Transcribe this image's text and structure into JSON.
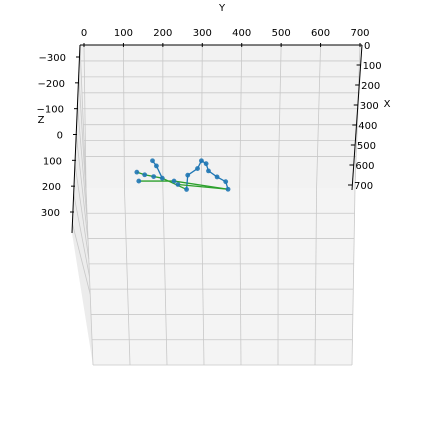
{
  "chart_data": {
    "type": "scatter",
    "projection": "3d",
    "grid": true,
    "axes": {
      "y": {
        "label": "Y",
        "ticks": [
          "0",
          "100",
          "200",
          "300",
          "400",
          "500",
          "600",
          "700"
        ],
        "range": [
          0,
          700
        ]
      },
      "x": {
        "label": "X",
        "ticks": [
          "0",
          "100",
          "200",
          "300",
          "400",
          "500",
          "600",
          "700"
        ],
        "range": [
          0,
          700
        ]
      },
      "z": {
        "label": "Z",
        "ticks": [
          "−300",
          "−200",
          "−100",
          "0",
          "100",
          "200",
          "300"
        ],
        "range": [
          -300,
          300
        ]
      }
    },
    "points": [
      {
        "y": 135,
        "x": 570,
        "z": 320
      },
      {
        "y": 155,
        "x": 580,
        "z": 322
      },
      {
        "y": 178,
        "x": 585,
        "z": 325
      },
      {
        "y": 200,
        "x": 590,
        "z": 327
      },
      {
        "y": 175,
        "x": 540,
        "z": 300
      },
      {
        "y": 185,
        "x": 555,
        "z": 308
      },
      {
        "y": 300,
        "x": 540,
        "z": 300
      },
      {
        "y": 312,
        "x": 548,
        "z": 305
      },
      {
        "y": 290,
        "x": 565,
        "z": 310
      },
      {
        "y": 265,
        "x": 590,
        "z": 315
      },
      {
        "y": 318,
        "x": 570,
        "z": 315
      },
      {
        "y": 340,
        "x": 590,
        "z": 322
      },
      {
        "y": 362,
        "x": 605,
        "z": 328
      },
      {
        "y": 368,
        "x": 630,
        "z": 337
      },
      {
        "y": 240,
        "x": 610,
        "z": 335
      },
      {
        "y": 262,
        "x": 625,
        "z": 342
      },
      {
        "y": 140,
        "x": 600,
        "z": 330
      },
      {
        "y": 230,
        "x": 600,
        "z": 330
      }
    ],
    "segments": [
      {
        "from": 0,
        "to": 1,
        "color": "#2ca02c"
      },
      {
        "from": 1,
        "to": 3,
        "color": "#2ca02c"
      },
      {
        "from": 4,
        "to": 5,
        "color": "#1f77b4"
      },
      {
        "from": 5,
        "to": 3,
        "color": "#1f77b4"
      },
      {
        "from": 16,
        "to": 17,
        "color": "#2ca02c"
      },
      {
        "from": 17,
        "to": 13,
        "color": "#2ca02c"
      },
      {
        "from": 3,
        "to": 15,
        "color": "#2ca02c"
      },
      {
        "from": 15,
        "to": 9,
        "color": "#1f77b4"
      },
      {
        "from": 9,
        "to": 8,
        "color": "#1f77b4"
      },
      {
        "from": 8,
        "to": 6,
        "color": "#1f77b4"
      },
      {
        "from": 6,
        "to": 7,
        "color": "#1f77b4"
      },
      {
        "from": 7,
        "to": 10,
        "color": "#1f77b4"
      },
      {
        "from": 10,
        "to": 11,
        "color": "#1f77b4"
      },
      {
        "from": 11,
        "to": 12,
        "color": "#1f77b4"
      },
      {
        "from": 12,
        "to": 13,
        "color": "#1f77b4"
      },
      {
        "from": 14,
        "to": 13,
        "color": "#2ca02c"
      }
    ],
    "colors": {
      "points": "#1f77b4",
      "line_green": "#2ca02c",
      "line_blue": "#1f77b4",
      "pane": "#f2f2f2",
      "grid": "#c8c8c8"
    }
  }
}
